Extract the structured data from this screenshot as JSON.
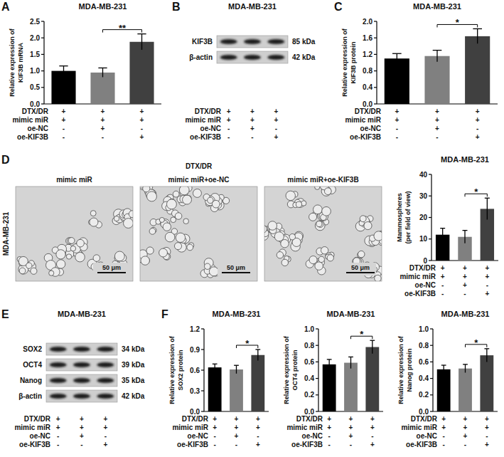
{
  "chart_data": [
    {
      "panel": "A",
      "type": "bar",
      "title": "MDA-MB-231",
      "y_label": "Relative expression of KIF3B mRNA",
      "categories": [
        null,
        null,
        null
      ],
      "values": [
        1.0,
        0.95,
        1.88
      ],
      "errors": [
        0.15,
        0.14,
        0.24
      ],
      "colors": [
        "#000000",
        "#808080",
        "#404040"
      ],
      "ylim": [
        0,
        2.5
      ],
      "yticks": [
        {
          "value": 0,
          "label": "0.0"
        },
        {
          "value": 0.5,
          "label": "0.5"
        },
        {
          "value": 1.0,
          "label": "1.0"
        },
        {
          "value": 1.5,
          "label": "1.5"
        },
        {
          "value": 2.0,
          "label": "2.0"
        },
        {
          "value": 2.5,
          "label": "2.5"
        }
      ],
      "annotations": [
        {
          "text": "**",
          "between": [
            1,
            2
          ]
        }
      ],
      "conditions": [
        {
          "label": "DTX/DR",
          "marks": [
            "+",
            "+",
            "+"
          ]
        },
        {
          "label": "mimic miR",
          "marks": [
            "+",
            "+",
            "+"
          ]
        },
        {
          "label": "oe-NC",
          "marks": [
            "-",
            "+",
            "-"
          ]
        },
        {
          "label": "oe-KIF3B",
          "marks": [
            "-",
            "-",
            "+"
          ]
        }
      ]
    },
    {
      "panel": "C",
      "type": "bar",
      "title": "MDA-MB-231",
      "y_label": "Relative expression of KIF3B protein",
      "categories": [
        null,
        null,
        null
      ],
      "values": [
        1.1,
        1.16,
        1.64
      ],
      "errors": [
        0.12,
        0.14,
        0.18
      ],
      "colors": [
        "#000000",
        "#808080",
        "#404040"
      ],
      "ylim": [
        0,
        2.0
      ],
      "yticks": [
        {
          "value": 0,
          "label": "0.0"
        },
        {
          "value": 0.4,
          "label": "0.4"
        },
        {
          "value": 0.8,
          "label": "0.8"
        },
        {
          "value": 1.2,
          "label": "1.2"
        },
        {
          "value": 1.6,
          "label": "1.6"
        },
        {
          "value": 2.0,
          "label": "2.0"
        }
      ],
      "annotations": [
        {
          "text": "*",
          "between": [
            1,
            2
          ]
        }
      ],
      "conditions": [
        {
          "label": "DTX/DR",
          "marks": [
            "+",
            "+",
            "+"
          ]
        },
        {
          "label": "mimic miR",
          "marks": [
            "+",
            "+",
            "+"
          ]
        },
        {
          "label": "oe-NC",
          "marks": [
            "-",
            "+",
            "-"
          ]
        },
        {
          "label": "oe-KIF3B",
          "marks": [
            "-",
            "-",
            "+"
          ]
        }
      ]
    },
    {
      "type": "bar",
      "title": "MDA-MB-231",
      "y_label": "Mammospheres (per field of view)",
      "categories": [
        null,
        null,
        null
      ],
      "values": [
        12,
        11,
        24
      ],
      "errors": [
        3,
        3,
        5
      ],
      "colors": [
        "#000000",
        "#808080",
        "#404040"
      ],
      "ylim": [
        0,
        40
      ],
      "yticks": [
        0,
        10,
        20,
        30,
        40
      ],
      "annotations": [
        {
          "text": "*",
          "between": [
            1,
            2
          ]
        }
      ],
      "conditions": [
        {
          "label": "DTX/DR",
          "marks": [
            "+",
            "+",
            "+"
          ]
        },
        {
          "label": "mimic miR",
          "marks": [
            "+",
            "+",
            "+"
          ]
        },
        {
          "label": "oe-NC",
          "marks": [
            "-",
            "+",
            "-"
          ]
        },
        {
          "label": "oe-KIF3B",
          "marks": [
            "-",
            "-",
            "+"
          ]
        }
      ]
    },
    {
      "panel": "F",
      "type": "bar",
      "title": "MDA-MB-231",
      "y_label": "Relative expression of SOX2 protein",
      "categories": [
        null,
        null,
        null
      ],
      "values": [
        0.64,
        0.61,
        0.82
      ],
      "errors": [
        0.05,
        0.06,
        0.08
      ],
      "colors": [
        "#000000",
        "#808080",
        "#404040"
      ],
      "ylim": [
        0,
        1.2
      ],
      "yticks": [
        {
          "value": 0,
          "label": "0.0"
        },
        {
          "value": 0.3,
          "label": "0.3"
        },
        {
          "value": 0.6,
          "label": "0.6"
        },
        {
          "value": 0.9,
          "label": "0.9"
        },
        {
          "value": 1.2,
          "label": "1.2"
        }
      ],
      "annotations": [
        {
          "text": "*",
          "between": [
            1,
            2
          ]
        }
      ],
      "conditions": [
        {
          "label": "DTX/DR",
          "marks": [
            "+",
            "+",
            "+"
          ]
        },
        {
          "label": "mimic miR",
          "marks": [
            "+",
            "+",
            "+"
          ]
        },
        {
          "label": "oe-NC",
          "marks": [
            "-",
            "+",
            "-"
          ]
        },
        {
          "label": "oe-KIF3B",
          "marks": [
            "-",
            "-",
            "+"
          ]
        }
      ]
    },
    {
      "type": "bar",
      "title": "MDA-MB-231",
      "y_label": "Relative expression of OCT4 protein",
      "categories": [
        null,
        null,
        null
      ],
      "values": [
        0.57,
        0.59,
        0.78
      ],
      "errors": [
        0.06,
        0.07,
        0.08
      ],
      "colors": [
        "#000000",
        "#808080",
        "#404040"
      ],
      "ylim": [
        0,
        1.0
      ],
      "yticks": [
        {
          "value": 0,
          "label": "0.0"
        },
        {
          "value": 0.2,
          "label": "0.2"
        },
        {
          "value": 0.4,
          "label": "0.4"
        },
        {
          "value": 0.6,
          "label": "0.6"
        },
        {
          "value": 0.8,
          "label": "0.8"
        },
        {
          "value": 1.0,
          "label": "1.0"
        }
      ],
      "annotations": [
        {
          "text": "*",
          "between": [
            1,
            2
          ]
        }
      ],
      "conditions": [
        {
          "label": "DTX/DR",
          "marks": [
            "+",
            "+",
            "+"
          ]
        },
        {
          "label": "mimic miR",
          "marks": [
            "+",
            "+",
            "+"
          ]
        },
        {
          "label": "oe-NC",
          "marks": [
            "-",
            "+",
            "-"
          ]
        },
        {
          "label": "oe-KIF3B",
          "marks": [
            "-",
            "-",
            "+"
          ]
        }
      ]
    },
    {
      "type": "bar",
      "title": "MDA-MB-231",
      "y_label": "Relative expression of Nanog protein",
      "categories": [
        null,
        null,
        null
      ],
      "values": [
        0.51,
        0.52,
        0.68
      ],
      "errors": [
        0.05,
        0.05,
        0.08
      ],
      "colors": [
        "#000000",
        "#808080",
        "#404040"
      ],
      "ylim": [
        0,
        1.0
      ],
      "yticks": [
        {
          "value": 0,
          "label": "0.0"
        },
        {
          "value": 0.2,
          "label": "0.2"
        },
        {
          "value": 0.4,
          "label": "0.4"
        },
        {
          "value": 0.6,
          "label": "0.6"
        },
        {
          "value": 0.8,
          "label": "0.8"
        },
        {
          "value": 1.0,
          "label": "1.0"
        }
      ],
      "annotations": [
        {
          "text": "*",
          "between": [
            1,
            2
          ]
        }
      ],
      "conditions": [
        {
          "label": "DTX/DR",
          "marks": [
            "+",
            "+",
            "+"
          ]
        },
        {
          "label": "mimic miR",
          "marks": [
            "+",
            "+",
            "+"
          ]
        },
        {
          "label": "oe-NC",
          "marks": [
            "-",
            "+",
            "-"
          ]
        },
        {
          "label": "oe-KIF3B",
          "marks": [
            "-",
            "-",
            "+"
          ]
        }
      ]
    }
  ],
  "blots": [
    {
      "panel": "B",
      "title": "MDA-MB-231",
      "bands": [
        {
          "label": "KIF3B",
          "size": "85 kDa"
        },
        {
          "label": "β-actin",
          "size": "42 kDa"
        }
      ],
      "conditions": [
        {
          "label": "DTX/DR",
          "marks": [
            "+",
            "+",
            "+"
          ]
        },
        {
          "label": "mimic miR",
          "marks": [
            "+",
            "+",
            "+"
          ]
        },
        {
          "label": "oe-NC",
          "marks": [
            "-",
            "+",
            "-"
          ]
        },
        {
          "label": "oe-KIF3B",
          "marks": [
            "-",
            "-",
            "+"
          ]
        }
      ]
    },
    {
      "panel": "E",
      "title": "MDA-MB-231",
      "bands": [
        {
          "label": "SOX2",
          "size": "34 kDa"
        },
        {
          "label": "OCT4",
          "size": "39 kDa"
        },
        {
          "label": "Nanog",
          "size": "35 kDa"
        },
        {
          "label": "β-actin",
          "size": "42 kDa"
        }
      ],
      "conditions": [
        {
          "label": "DTX/DR",
          "marks": [
            "+",
            "+",
            "+"
          ]
        },
        {
          "label": "mimic miR",
          "marks": [
            "+",
            "+",
            "+"
          ]
        },
        {
          "label": "oe-NC",
          "marks": [
            "-",
            "+",
            "-"
          ]
        },
        {
          "label": "oe-KIF3B",
          "marks": [
            "-",
            "-",
            "+"
          ]
        }
      ]
    }
  ],
  "micrographs": {
    "panel": "D",
    "treatment": "DTX/DR",
    "cell_line": "MDA-MB-231",
    "images": [
      {
        "label": "mimic miR",
        "scale_bar": "50 μm"
      },
      {
        "label": "mimic miR+oe-NC",
        "scale_bar": "50 μm"
      },
      {
        "label": "mimic miR+oe-KIF3B",
        "scale_bar": "50 μm"
      }
    ]
  }
}
